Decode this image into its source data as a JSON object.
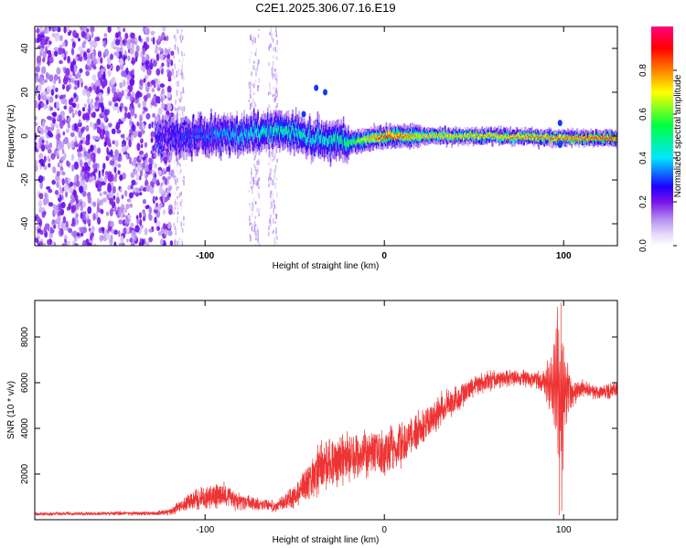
{
  "title": "C2E1.2025.306.07.16.E19",
  "chart_data": [
    {
      "type": "heatmap",
      "xlabel": "Height of straight line (km)",
      "ylabel": "Frequency (Hz)",
      "xlim": [
        -195,
        130
      ],
      "ylim": [
        -50,
        50
      ],
      "x_ticks": [
        -100,
        0,
        100
      ],
      "y_ticks": [
        -40,
        -20,
        0,
        20,
        40
      ],
      "x_tick_labels": [
        "-100",
        "0",
        "100"
      ],
      "y_tick_labels": [
        "-40",
        "-20",
        "0",
        "20",
        "40"
      ],
      "colorbar": {
        "label": "Normalized spectral amplitude",
        "range": [
          0,
          1
        ],
        "ticks": [
          0.0,
          0.2,
          0.4,
          0.6,
          0.8
        ],
        "tick_labels": [
          "0.0",
          "0.2",
          "0.4",
          "0.6",
          "0.8"
        ],
        "colormap": [
          "#ffffff",
          "#c9a8f0",
          "#7a12e8",
          "#1d00ff",
          "#00e8ff",
          "#00ff40",
          "#ffff00",
          "#ff8000",
          "#ff0000",
          "#ff0080"
        ]
      },
      "ridge": {
        "description_points_km": [
          -125,
          -100,
          -75,
          -55,
          -40,
          -20,
          0,
          20,
          60,
          100,
          130
        ],
        "center_hz": [
          0,
          0,
          1,
          3,
          -1,
          -3,
          0,
          0,
          0,
          -1,
          -1
        ],
        "peak_amplitude": [
          0.25,
          0.35,
          0.45,
          0.5,
          0.45,
          0.55,
          0.9,
          0.75,
          0.8,
          0.85,
          0.9
        ]
      }
    },
    {
      "type": "line",
      "xlabel": "Height of straight line (km)",
      "ylabel": "SNR (10 * v/v)",
      "xlim": [
        -195,
        130
      ],
      "ylim": [
        0,
        9600
      ],
      "x_ticks": [
        -100,
        0,
        100
      ],
      "y_ticks": [
        2000,
        4000,
        6000,
        8000
      ],
      "x_tick_labels": [
        "-100",
        "0",
        "100"
      ],
      "y_tick_labels": [
        "2000",
        "4000",
        "6000",
        "8000"
      ],
      "series": [
        {
          "name": "SNR",
          "color": "#ee3333",
          "envelope_x": [
            -195,
            -130,
            -120,
            -110,
            -100,
            -90,
            -80,
            -70,
            -60,
            -50,
            -40,
            -35,
            -30,
            -20,
            -10,
            0,
            10,
            20,
            30,
            40,
            50,
            60,
            70,
            80,
            90,
            95,
            97,
            99,
            101,
            105,
            110,
            120,
            130
          ],
          "envelope_y": [
            250,
            280,
            350,
            750,
            950,
            1150,
            800,
            650,
            600,
            1050,
            1900,
            2500,
            2600,
            2800,
            2850,
            2950,
            3300,
            4000,
            4700,
            5200,
            5900,
            6100,
            6200,
            6200,
            6000,
            5900,
            6000,
            5000,
            5800,
            5600,
            5700,
            5600,
            5700
          ],
          "noise_amplitude": [
            100,
            120,
            200,
            500,
            700,
            800,
            500,
            400,
            400,
            800,
            1300,
            1600,
            1700,
            1500,
            1500,
            1500,
            1300,
            1100,
            1000,
            900,
            700,
            600,
            500,
            500,
            800,
            2000,
            3500,
            4500,
            2500,
            800,
            500,
            500,
            500
          ],
          "annotations": {
            "spike_max_km": 98.5,
            "spike_max_snr": 9500,
            "dip_min_km": 97.7,
            "dip_min_snr": 200
          }
        }
      ]
    }
  ]
}
